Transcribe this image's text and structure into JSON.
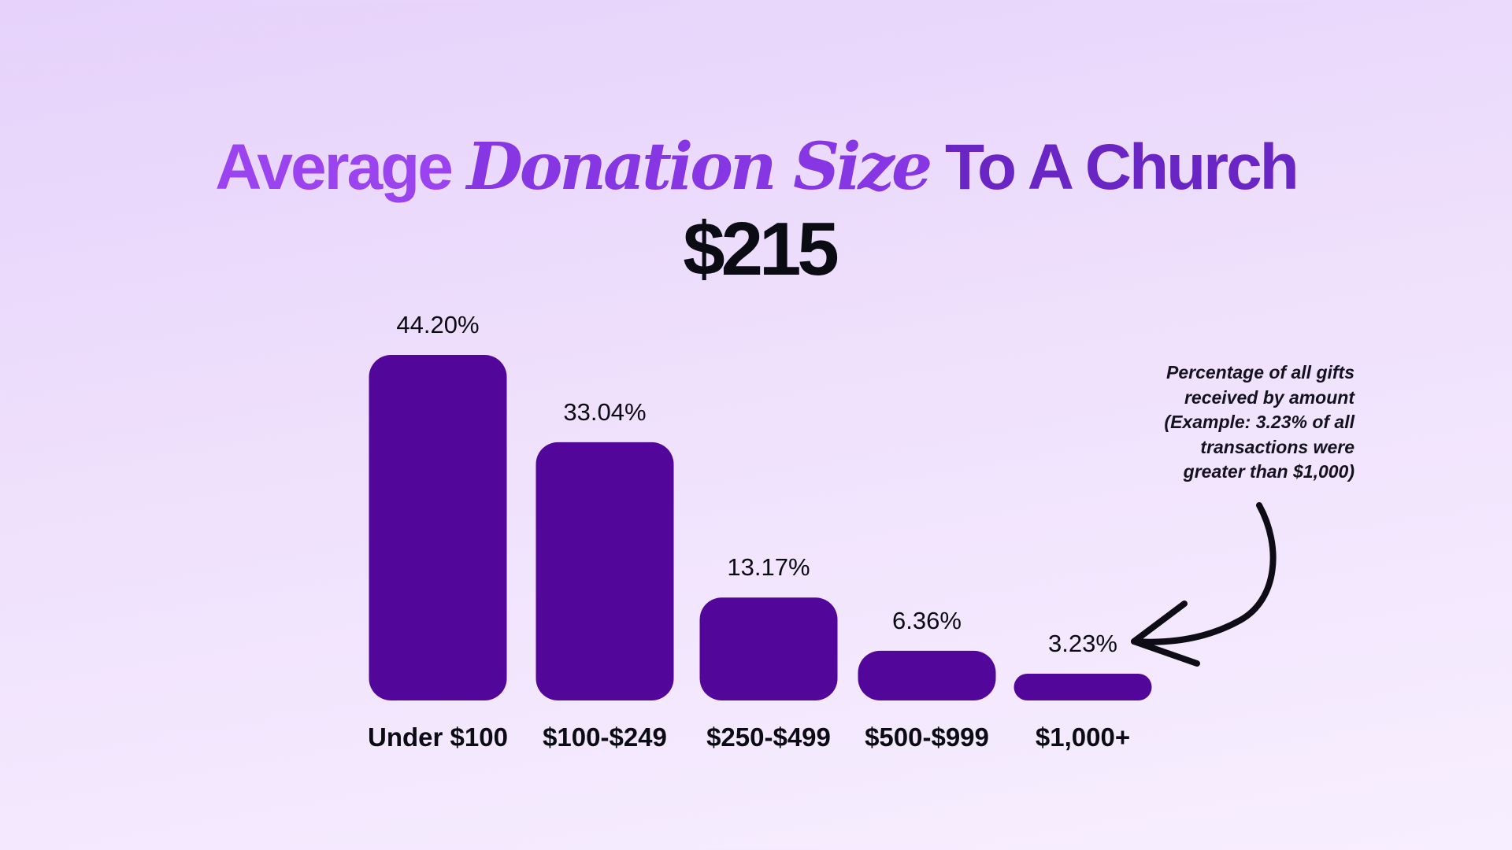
{
  "title": {
    "part1": "Average",
    "part2": "Donation Size",
    "part3": "To A Church"
  },
  "average_value": "$215",
  "annotation": {
    "lines": [
      "Percentage of all gifts",
      "received by amount",
      "(Example: 3.23% of all",
      "transactions were",
      "greater than $1,000)"
    ]
  },
  "colors": {
    "bar": "#52069a",
    "title_light": "#9a43ee",
    "title_mid": "#8636e2",
    "title_dark": "#6a26c4",
    "text": "#0b0b14"
  },
  "chart_data": {
    "type": "bar",
    "title": "Average Donation Size To A Church",
    "categories": [
      "Under $100",
      "$100-$249",
      "$250-$499",
      "$500-$999",
      "$1,000+"
    ],
    "values": [
      44.2,
      33.04,
      13.17,
      6.36,
      3.23
    ],
    "value_labels": [
      "44.20%",
      "33.04%",
      "13.17%",
      "6.36%",
      "3.23%"
    ],
    "xlabel": "",
    "ylabel": "",
    "ylim": [
      0,
      44.2
    ],
    "grid": false,
    "legend": "none"
  }
}
